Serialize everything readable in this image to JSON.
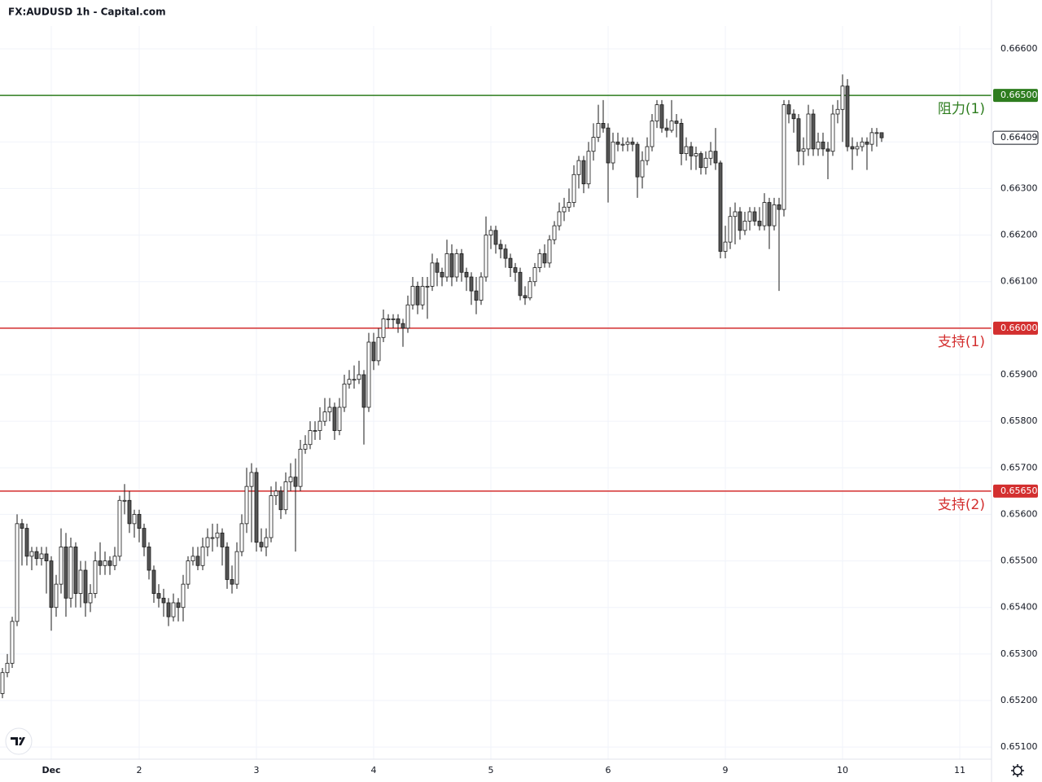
{
  "chart_data": {
    "type": "candlestick",
    "title": "FX:AUDUSD 1h - Capital.com",
    "up_color": "#ffffff",
    "down_color": "#555555",
    "edge_color": "#1a1a1a",
    "grid": true,
    "ylim": [
      0.65074,
      0.66649
    ],
    "yticks": [
      {
        "value": 0.651,
        "label": "0.65100"
      },
      {
        "value": 0.652,
        "label": "0.65200"
      },
      {
        "value": 0.653,
        "label": "0.65300"
      },
      {
        "value": 0.654,
        "label": "0.65400"
      },
      {
        "value": 0.655,
        "label": "0.65500"
      },
      {
        "value": 0.656,
        "label": "0.65600"
      },
      {
        "value": 0.657,
        "label": "0.65700"
      },
      {
        "value": 0.658,
        "label": "0.65800"
      },
      {
        "value": 0.659,
        "label": "0.65900"
      },
      {
        "value": 0.66,
        "label": "0.66000"
      },
      {
        "value": 0.661,
        "label": "0.66100"
      },
      {
        "value": 0.662,
        "label": "0.66200"
      },
      {
        "value": 0.663,
        "label": "0.66300"
      },
      {
        "value": 0.664,
        "label": "0.66400"
      },
      {
        "value": 0.665,
        "label": "0.66500"
      },
      {
        "value": 0.666,
        "label": "0.66600"
      }
    ],
    "levels": [
      {
        "name": "阻力(1)",
        "value": 0.665,
        "label": "0.66500",
        "color": "#2e7d1f"
      },
      {
        "name": "支持(1)",
        "value": 0.66,
        "label": "0.66000",
        "color": "#d32f2f"
      },
      {
        "name": "支持(2)",
        "value": 0.6565,
        "label": "0.65650",
        "color": "#d32f2f"
      }
    ],
    "categories": [
      null,
      null,
      null,
      null,
      null,
      null,
      null,
      null,
      null,
      null,
      "Dec",
      null,
      null,
      null,
      null,
      null,
      null,
      null,
      null,
      null,
      null,
      null,
      null,
      null,
      null,
      null,
      null,
      null,
      "2",
      null,
      null,
      null,
      null,
      null,
      null,
      null,
      null,
      null,
      null,
      null,
      null,
      null,
      null,
      null,
      null,
      null,
      null,
      null,
      null,
      null,
      null,
      null,
      "3",
      null,
      null,
      null,
      null,
      null,
      null,
      null,
      null,
      null,
      null,
      null,
      null,
      null,
      null,
      null,
      null,
      null,
      null,
      null,
      null,
      null,
      null,
      null,
      "4",
      null,
      null,
      null,
      null,
      null,
      null,
      null,
      null,
      null,
      null,
      null,
      null,
      null,
      null,
      null,
      null,
      null,
      null,
      null,
      null,
      null,
      null,
      null,
      "5",
      null,
      null,
      null,
      null,
      null,
      null,
      null,
      null,
      null,
      null,
      null,
      null,
      null,
      null,
      null,
      null,
      null,
      null,
      null,
      null,
      null,
      null,
      null,
      "6",
      null,
      null,
      null,
      null,
      null,
      null,
      null,
      null,
      null,
      null,
      null,
      null,
      null,
      null,
      null,
      null,
      null,
      null,
      null,
      null,
      null,
      null,
      null,
      "9",
      null,
      null,
      null,
      null,
      null,
      null,
      null,
      null,
      null,
      null,
      null,
      null,
      null,
      null,
      null,
      null,
      null,
      null,
      null,
      null,
      null,
      null,
      null,
      "10",
      null,
      null,
      null,
      null,
      null,
      null,
      null,
      null,
      null,
      null,
      null,
      null,
      null,
      null,
      null,
      null,
      null,
      null,
      null,
      null,
      null,
      null,
      null,
      "11"
    ],
    "ohlc": [
      [
        0.65215,
        0.6527,
        0.65205,
        0.6526
      ],
      [
        0.6526,
        0.653,
        0.6525,
        0.6528
      ],
      [
        0.6528,
        0.6538,
        0.6527,
        0.6537
      ],
      [
        0.6537,
        0.656,
        0.6536,
        0.6558
      ],
      [
        0.6558,
        0.6559,
        0.6549,
        0.6557
      ],
      [
        0.6557,
        0.6558,
        0.6549,
        0.6551
      ],
      [
        0.6551,
        0.6553,
        0.6548,
        0.6552
      ],
      [
        0.6552,
        0.6553,
        0.6549,
        0.65505
      ],
      [
        0.65505,
        0.6553,
        0.6549,
        0.65515
      ],
      [
        0.65515,
        0.6553,
        0.6543,
        0.655
      ],
      [
        0.655,
        0.6551,
        0.6535,
        0.654
      ],
      [
        0.654,
        0.6547,
        0.6538,
        0.6545
      ],
      [
        0.6545,
        0.6557,
        0.6543,
        0.6553
      ],
      [
        0.6553,
        0.6556,
        0.6538,
        0.6542
      ],
      [
        0.6542,
        0.6555,
        0.654,
        0.6553
      ],
      [
        0.6553,
        0.6554,
        0.654,
        0.6543
      ],
      [
        0.6543,
        0.655,
        0.654,
        0.6548
      ],
      [
        0.6548,
        0.655,
        0.6538,
        0.6541
      ],
      [
        0.6541,
        0.6545,
        0.6539,
        0.6543
      ],
      [
        0.6543,
        0.6552,
        0.6542,
        0.655
      ],
      [
        0.655,
        0.6554,
        0.6547,
        0.6549
      ],
      [
        0.6549,
        0.6552,
        0.6547,
        0.655
      ],
      [
        0.655,
        0.6551,
        0.6547,
        0.6549
      ],
      [
        0.6549,
        0.6553,
        0.6548,
        0.6551
      ],
      [
        0.6551,
        0.6564,
        0.655,
        0.6563
      ],
      [
        0.6563,
        0.65665,
        0.656,
        0.6563
      ],
      [
        0.6563,
        0.6565,
        0.6556,
        0.6558
      ],
      [
        0.6558,
        0.6561,
        0.6555,
        0.656
      ],
      [
        0.656,
        0.6561,
        0.6554,
        0.6557
      ],
      [
        0.6557,
        0.6558,
        0.6551,
        0.6553
      ],
      [
        0.6553,
        0.6554,
        0.6546,
        0.6548
      ],
      [
        0.6548,
        0.6549,
        0.6541,
        0.6543
      ],
      [
        0.6543,
        0.6545,
        0.654,
        0.6542
      ],
      [
        0.6542,
        0.6544,
        0.6538,
        0.6541
      ],
      [
        0.6541,
        0.6542,
        0.6536,
        0.6538
      ],
      [
        0.6538,
        0.6543,
        0.6537,
        0.6541
      ],
      [
        0.6541,
        0.6542,
        0.6537,
        0.654
      ],
      [
        0.654,
        0.6547,
        0.6537,
        0.6545
      ],
      [
        0.6545,
        0.6551,
        0.6544,
        0.655
      ],
      [
        0.655,
        0.6553,
        0.6549,
        0.6551
      ],
      [
        0.6551,
        0.6553,
        0.6548,
        0.6549
      ],
      [
        0.6549,
        0.6555,
        0.6548,
        0.6553
      ],
      [
        0.6553,
        0.6557,
        0.6551,
        0.6555
      ],
      [
        0.6555,
        0.6558,
        0.6552,
        0.6555
      ],
      [
        0.6555,
        0.6558,
        0.6553,
        0.6556
      ],
      [
        0.6556,
        0.6557,
        0.6549,
        0.6553
      ],
      [
        0.6553,
        0.6554,
        0.6544,
        0.6546
      ],
      [
        0.6546,
        0.6549,
        0.6543,
        0.6545
      ],
      [
        0.6545,
        0.6554,
        0.6544,
        0.6552
      ],
      [
        0.6552,
        0.656,
        0.6551,
        0.6558
      ],
      [
        0.6558,
        0.657,
        0.6556,
        0.6566
      ],
      [
        0.6566,
        0.6571,
        0.6554,
        0.6569
      ],
      [
        0.6569,
        0.657,
        0.6552,
        0.6554
      ],
      [
        0.6554,
        0.6557,
        0.6552,
        0.6553
      ],
      [
        0.6553,
        0.6557,
        0.6551,
        0.6555
      ],
      [
        0.6555,
        0.6566,
        0.6554,
        0.6564
      ],
      [
        0.6564,
        0.6567,
        0.6562,
        0.6565
      ],
      [
        0.6565,
        0.6566,
        0.6559,
        0.6561
      ],
      [
        0.6561,
        0.6569,
        0.656,
        0.6567
      ],
      [
        0.6567,
        0.6571,
        0.6565,
        0.6568
      ],
      [
        0.6568,
        0.6572,
        0.6552,
        0.6566
      ],
      [
        0.6566,
        0.6576,
        0.6565,
        0.6574
      ],
      [
        0.6574,
        0.6577,
        0.6573,
        0.6575
      ],
      [
        0.6575,
        0.658,
        0.6574,
        0.6578
      ],
      [
        0.6578,
        0.658,
        0.6576,
        0.6578
      ],
      [
        0.6578,
        0.6583,
        0.6576,
        0.658
      ],
      [
        0.658,
        0.6585,
        0.6579,
        0.6582
      ],
      [
        0.6582,
        0.6585,
        0.658,
        0.6583
      ],
      [
        0.6583,
        0.6584,
        0.6576,
        0.6578
      ],
      [
        0.6578,
        0.6585,
        0.6577,
        0.6583
      ],
      [
        0.6583,
        0.659,
        0.6582,
        0.6588
      ],
      [
        0.6588,
        0.6591,
        0.6587,
        0.6589
      ],
      [
        0.6589,
        0.6592,
        0.6587,
        0.6589
      ],
      [
        0.6589,
        0.6593,
        0.6588,
        0.659
      ],
      [
        0.659,
        0.6591,
        0.6575,
        0.6583
      ],
      [
        0.6583,
        0.6599,
        0.6582,
        0.6597
      ],
      [
        0.6597,
        0.6599,
        0.6591,
        0.6593
      ],
      [
        0.6593,
        0.66,
        0.6592,
        0.6598
      ],
      [
        0.6598,
        0.6604,
        0.6597,
        0.6602
      ],
      [
        0.6602,
        0.6603,
        0.66,
        0.6602
      ],
      [
        0.6602,
        0.6603,
        0.66,
        0.6602
      ],
      [
        0.6602,
        0.6603,
        0.6599,
        0.6601
      ],
      [
        0.6601,
        0.6602,
        0.6596,
        0.66
      ],
      [
        0.66,
        0.6607,
        0.6599,
        0.6605
      ],
      [
        0.6605,
        0.6611,
        0.6604,
        0.6609
      ],
      [
        0.6609,
        0.661,
        0.6603,
        0.6605
      ],
      [
        0.6605,
        0.6611,
        0.6604,
        0.6609
      ],
      [
        0.6609,
        0.6611,
        0.6602,
        0.6609
      ],
      [
        0.6609,
        0.6616,
        0.6608,
        0.6614
      ],
      [
        0.6614,
        0.6615,
        0.6609,
        0.6612
      ],
      [
        0.6612,
        0.6613,
        0.6609,
        0.6611
      ],
      [
        0.6611,
        0.6619,
        0.661,
        0.6616
      ],
      [
        0.6616,
        0.6618,
        0.6609,
        0.6611
      ],
      [
        0.6611,
        0.6617,
        0.661,
        0.6616
      ],
      [
        0.6616,
        0.6617,
        0.661,
        0.6612
      ],
      [
        0.6612,
        0.6613,
        0.6608,
        0.6611
      ],
      [
        0.6611,
        0.6612,
        0.6605,
        0.6608
      ],
      [
        0.6608,
        0.6611,
        0.6603,
        0.6606
      ],
      [
        0.6606,
        0.6612,
        0.6605,
        0.6611
      ],
      [
        0.6611,
        0.6624,
        0.661,
        0.662
      ],
      [
        0.662,
        0.6622,
        0.6617,
        0.6621
      ],
      [
        0.6621,
        0.6622,
        0.6616,
        0.6618
      ],
      [
        0.6618,
        0.6619,
        0.6615,
        0.6617
      ],
      [
        0.6617,
        0.6618,
        0.6613,
        0.6615
      ],
      [
        0.6615,
        0.6616,
        0.6611,
        0.6613
      ],
      [
        0.6613,
        0.6614,
        0.661,
        0.6612
      ],
      [
        0.6612,
        0.6613,
        0.6606,
        0.6607
      ],
      [
        0.6607,
        0.6609,
        0.6605,
        0.66065
      ],
      [
        0.66065,
        0.6611,
        0.6606,
        0.661
      ],
      [
        0.661,
        0.6614,
        0.6609,
        0.6613
      ],
      [
        0.6613,
        0.6617,
        0.6612,
        0.6616
      ],
      [
        0.6616,
        0.6618,
        0.6613,
        0.6614
      ],
      [
        0.6614,
        0.662,
        0.6613,
        0.6619
      ],
      [
        0.6619,
        0.6623,
        0.6618,
        0.6622
      ],
      [
        0.6622,
        0.6627,
        0.6621,
        0.6625
      ],
      [
        0.6625,
        0.6628,
        0.6623,
        0.6626
      ],
      [
        0.6626,
        0.663,
        0.6625,
        0.6627
      ],
      [
        0.6627,
        0.6635,
        0.6626,
        0.6633
      ],
      [
        0.6633,
        0.6637,
        0.663,
        0.6636
      ],
      [
        0.6636,
        0.6637,
        0.6629,
        0.6631
      ],
      [
        0.6631,
        0.664,
        0.663,
        0.6638
      ],
      [
        0.6638,
        0.6644,
        0.6636,
        0.6641
      ],
      [
        0.6641,
        0.6648,
        0.664,
        0.6644
      ],
      [
        0.6644,
        0.6649,
        0.6642,
        0.6643
      ],
      [
        0.6643,
        0.6644,
        0.6627,
        0.66355
      ],
      [
        0.66355,
        0.6642,
        0.6634,
        0.664
      ],
      [
        0.664,
        0.6642,
        0.6638,
        0.66395
      ],
      [
        0.66395,
        0.6641,
        0.6638,
        0.66395
      ],
      [
        0.66395,
        0.6641,
        0.6638,
        0.664
      ],
      [
        0.664,
        0.6641,
        0.6638,
        0.66395
      ],
      [
        0.66395,
        0.664,
        0.6628,
        0.66325
      ],
      [
        0.66325,
        0.6638,
        0.663,
        0.6636
      ],
      [
        0.6636,
        0.6641,
        0.6635,
        0.6639
      ],
      [
        0.6639,
        0.6646,
        0.6638,
        0.66445
      ],
      [
        0.66445,
        0.6649,
        0.6643,
        0.6648
      ],
      [
        0.6648,
        0.6649,
        0.6642,
        0.6643
      ],
      [
        0.6643,
        0.6645,
        0.6641,
        0.66425
      ],
      [
        0.66425,
        0.6649,
        0.6642,
        0.66445
      ],
      [
        0.66445,
        0.6646,
        0.6641,
        0.6644
      ],
      [
        0.6644,
        0.6645,
        0.6635,
        0.66375
      ],
      [
        0.66375,
        0.6641,
        0.6636,
        0.6639
      ],
      [
        0.6639,
        0.664,
        0.6634,
        0.6637
      ],
      [
        0.6637,
        0.6639,
        0.6634,
        0.66375
      ],
      [
        0.66375,
        0.6638,
        0.6633,
        0.66345
      ],
      [
        0.66345,
        0.6638,
        0.6633,
        0.66365
      ],
      [
        0.66365,
        0.664,
        0.6635,
        0.6638
      ],
      [
        0.6638,
        0.6643,
        0.6634,
        0.66355
      ],
      [
        0.66355,
        0.6636,
        0.6615,
        0.66165
      ],
      [
        0.66165,
        0.6622,
        0.6615,
        0.66185
      ],
      [
        0.66185,
        0.6626,
        0.6617,
        0.6624
      ],
      [
        0.6624,
        0.6627,
        0.6618,
        0.6625
      ],
      [
        0.6625,
        0.6626,
        0.6619,
        0.6621
      ],
      [
        0.6621,
        0.6625,
        0.662,
        0.6623
      ],
      [
        0.6623,
        0.6626,
        0.6621,
        0.6625
      ],
      [
        0.6625,
        0.6626,
        0.6622,
        0.6623
      ],
      [
        0.6623,
        0.6626,
        0.6621,
        0.6622
      ],
      [
        0.6622,
        0.6629,
        0.6621,
        0.6627
      ],
      [
        0.6627,
        0.6628,
        0.6617,
        0.6622
      ],
      [
        0.6622,
        0.6628,
        0.6621,
        0.66265
      ],
      [
        0.66265,
        0.6628,
        0.6608,
        0.66255
      ],
      [
        0.66255,
        0.6649,
        0.6624,
        0.6648
      ],
      [
        0.6648,
        0.6649,
        0.6644,
        0.6646
      ],
      [
        0.6646,
        0.6647,
        0.6642,
        0.6645
      ],
      [
        0.6645,
        0.6646,
        0.6635,
        0.6638
      ],
      [
        0.6638,
        0.6641,
        0.6635,
        0.66385
      ],
      [
        0.66385,
        0.6648,
        0.6637,
        0.6646
      ],
      [
        0.6646,
        0.6647,
        0.6637,
        0.66385
      ],
      [
        0.66385,
        0.6642,
        0.6637,
        0.664
      ],
      [
        0.664,
        0.6642,
        0.6637,
        0.66385
      ],
      [
        0.66385,
        0.664,
        0.6632,
        0.6638
      ],
      [
        0.6638,
        0.6648,
        0.6637,
        0.6646
      ],
      [
        0.6646,
        0.6649,
        0.6644,
        0.6647
      ],
      [
        0.6647,
        0.66545,
        0.664,
        0.6652
      ],
      [
        0.6652,
        0.66535,
        0.6638,
        0.6639
      ],
      [
        0.6639,
        0.6641,
        0.6634,
        0.66385
      ],
      [
        0.66385,
        0.664,
        0.6637,
        0.6639
      ],
      [
        0.6639,
        0.6641,
        0.6638,
        0.664
      ],
      [
        0.664,
        0.6641,
        0.6634,
        0.66395
      ],
      [
        0.66395,
        0.6643,
        0.6638,
        0.6642
      ],
      [
        0.6642,
        0.6643,
        0.6639,
        0.6642
      ],
      [
        0.6642,
        0.6642,
        0.664,
        0.66409
      ],
      null,
      null,
      null,
      null,
      null,
      null,
      null,
      null,
      null,
      null,
      null,
      null,
      null,
      null,
      null,
      null
    ]
  }
}
